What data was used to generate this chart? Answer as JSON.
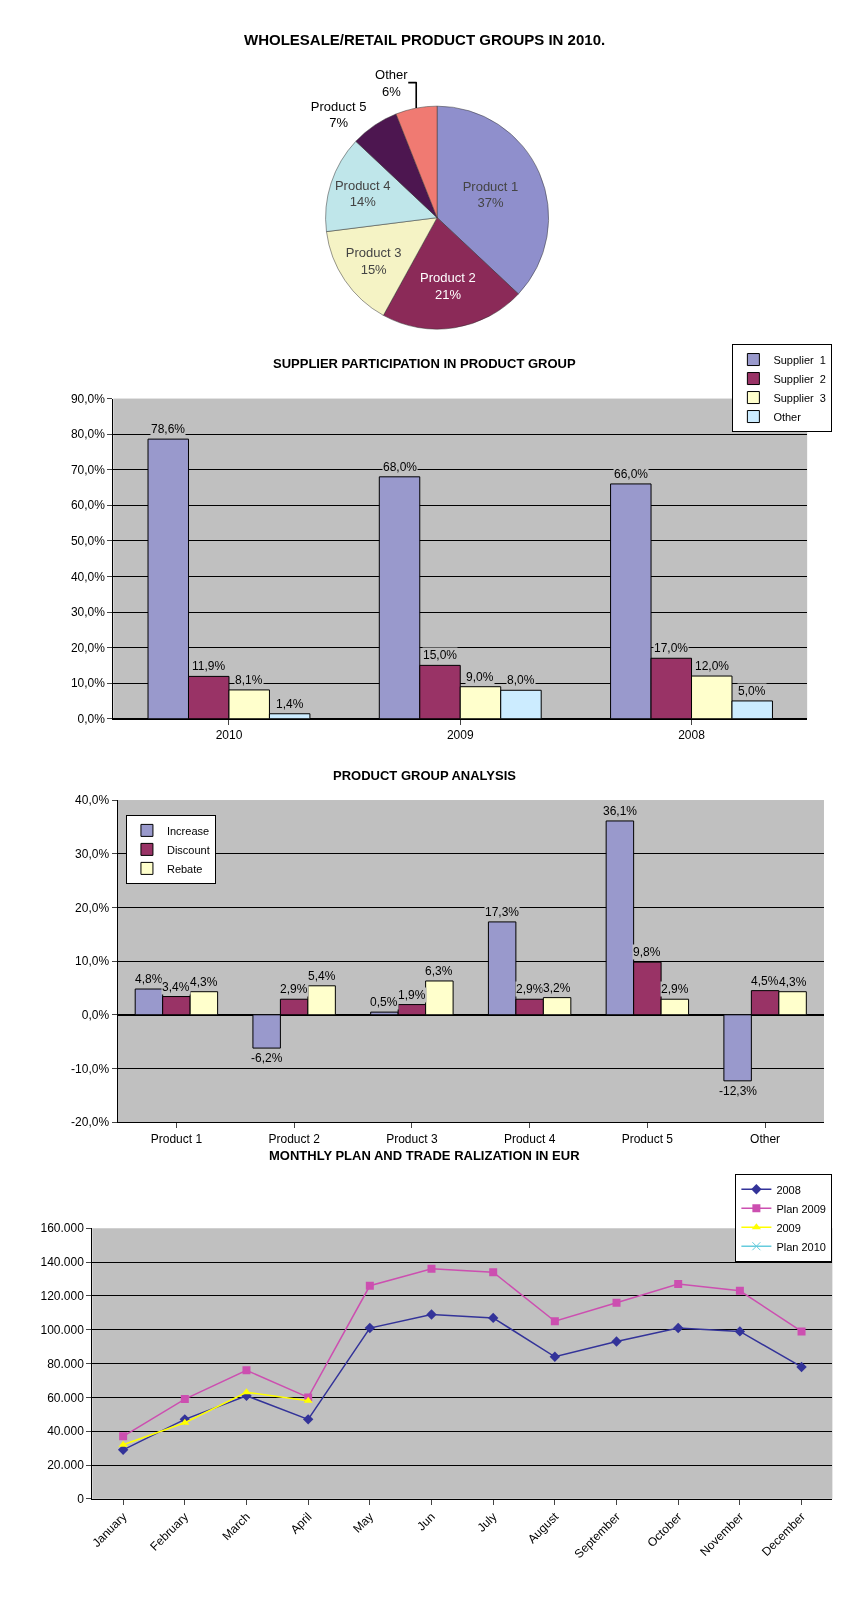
{
  "chart_data": [
    {
      "type": "pie",
      "title": "WHOLESALE/RETAIL PRODUCT GROUPS IN 2010.",
      "categories": [
        "Product 1",
        "Product 2",
        "Product 3",
        "Product 4",
        "Product 5",
        "Other"
      ],
      "values": [
        37,
        21,
        15,
        14,
        7,
        6
      ],
      "value_labels": [
        "37%",
        "21%",
        "15%",
        "14%",
        "7%",
        "6%"
      ],
      "colors": [
        "#8f8fcc",
        "#8b2a58",
        "#f5f3c5",
        "#bfe6ea",
        "#4d1650",
        "#f07a72"
      ]
    },
    {
      "type": "bar",
      "title": "SUPPLIER PARTICIPATION IN PRODUCT GROUP",
      "categories": [
        "2010",
        "2009",
        "2008"
      ],
      "series": [
        {
          "name": "Supplier  1",
          "color": "#9999cc",
          "values": [
            78.6,
            68.0,
            66.0
          ],
          "value_labels": [
            "78,6%",
            "68,0%",
            "66,0%"
          ]
        },
        {
          "name": "Supplier  2",
          "color": "#993366",
          "values": [
            11.9,
            15.0,
            17.0
          ],
          "value_labels": [
            "11,9%",
            "15,0%",
            "17,0%"
          ]
        },
        {
          "name": "Supplier  3",
          "color": "#ffffcc",
          "values": [
            8.1,
            9.0,
            12.0
          ],
          "value_labels": [
            "8,1%",
            "9,0%",
            "12,0%"
          ]
        },
        {
          "name": "Other",
          "color": "#ccecff",
          "values": [
            1.4,
            8.0,
            5.0
          ],
          "value_labels": [
            "1,4%",
            "8,0%",
            "5,0%"
          ]
        }
      ],
      "ylim": [
        0,
        90
      ],
      "yticks": [
        {
          "value": 0,
          "label": "0,0%"
        },
        {
          "value": 10,
          "label": "10,0%"
        },
        {
          "value": 20,
          "label": "20,0%"
        },
        {
          "value": 30,
          "label": "30,0%"
        },
        {
          "value": 40,
          "label": "40,0%"
        },
        {
          "value": 50,
          "label": "50,0%"
        },
        {
          "value": 60,
          "label": "60,0%"
        },
        {
          "value": 70,
          "label": "70,0%"
        },
        {
          "value": 80,
          "label": "80,0%"
        },
        {
          "value": 90,
          "label": "90,0%"
        }
      ],
      "grid": "y",
      "legend": "top right"
    },
    {
      "type": "bar",
      "title": "PRODUCT GROUP ANALYSIS",
      "categories": [
        "Product 1",
        "Product 2",
        "Product 3",
        "Product 4",
        "Product 5",
        "Other"
      ],
      "series": [
        {
          "name": "Increase",
          "color": "#9999cc",
          "values": [
            4.8,
            -6.2,
            0.5,
            17.3,
            36.1,
            -12.3
          ],
          "value_labels": [
            "4,8%",
            "-6,2%",
            "0,5%",
            "17,3%",
            "36,1%",
            "-12,3%"
          ]
        },
        {
          "name": "Discount",
          "color": "#993366",
          "values": [
            3.4,
            2.9,
            1.9,
            2.9,
            9.8,
            4.5
          ],
          "value_labels": [
            "3,4%",
            "2,9%",
            "1,9%",
            "2,9%",
            "9,8%",
            "4,5%"
          ]
        },
        {
          "name": "Rebate",
          "color": "#ffffcc",
          "values": [
            4.3,
            5.4,
            6.3,
            3.2,
            2.9,
            4.3
          ],
          "value_labels": [
            "4,3%",
            "5,4%",
            "6,3%",
            "3,2%",
            "2,9%",
            "4,3%"
          ]
        }
      ],
      "ylim": [
        -20,
        40
      ],
      "yticks": [
        {
          "value": -20,
          "label": "-20,0%"
        },
        {
          "value": -10,
          "label": "-10,0%"
        },
        {
          "value": 0,
          "label": "0,0%"
        },
        {
          "value": 10,
          "label": "10,0%"
        },
        {
          "value": 20,
          "label": "20,0%"
        },
        {
          "value": 30,
          "label": "30,0%"
        },
        {
          "value": 40,
          "label": "40,0%"
        }
      ],
      "grid": "y",
      "legend": "top left"
    },
    {
      "type": "line",
      "title": "MONTHLY PLAN AND TRADE RALIZATION IN EUR",
      "categories": [
        "January",
        "February",
        "March",
        "April",
        "May",
        "Jun",
        "July",
        "August",
        "September",
        "October",
        "November",
        "December"
      ],
      "series": [
        {
          "name": "2008",
          "color": "#333399",
          "marker": "diamond",
          "values": [
            29000,
            47000,
            61000,
            47000,
            101000,
            109000,
            107000,
            84000,
            93000,
            101000,
            99000,
            78000
          ]
        },
        {
          "name": "Plan 2009",
          "color": "#cc4fb0",
          "marker": "square",
          "values": [
            37000,
            59000,
            76000,
            60000,
            126000,
            136000,
            134000,
            105000,
            116000,
            127000,
            123000,
            99000
          ]
        },
        {
          "name": "2009",
          "color": "#ffff00",
          "marker": "triangle",
          "values": [
            32000,
            45000,
            63000,
            58000,
            null,
            null,
            null,
            null,
            null,
            null,
            null,
            null
          ]
        },
        {
          "name": "Plan 2010",
          "color": "#66ccdd",
          "marker": "cross",
          "values": [
            null,
            null,
            null,
            null,
            null,
            null,
            null,
            null,
            null,
            null,
            null,
            null
          ]
        }
      ],
      "ylim": [
        0,
        160000
      ],
      "yticks": [
        {
          "value": 0,
          "label": "0"
        },
        {
          "value": 20000,
          "label": "20.000"
        },
        {
          "value": 40000,
          "label": "40.000"
        },
        {
          "value": 60000,
          "label": "60.000"
        },
        {
          "value": 80000,
          "label": "80.000"
        },
        {
          "value": 100000,
          "label": "100.000"
        },
        {
          "value": 120000,
          "label": "120.000"
        },
        {
          "value": 140000,
          "label": "140.000"
        },
        {
          "value": 160000,
          "label": "160.000"
        }
      ],
      "grid": "y",
      "legend": "top right"
    }
  ]
}
